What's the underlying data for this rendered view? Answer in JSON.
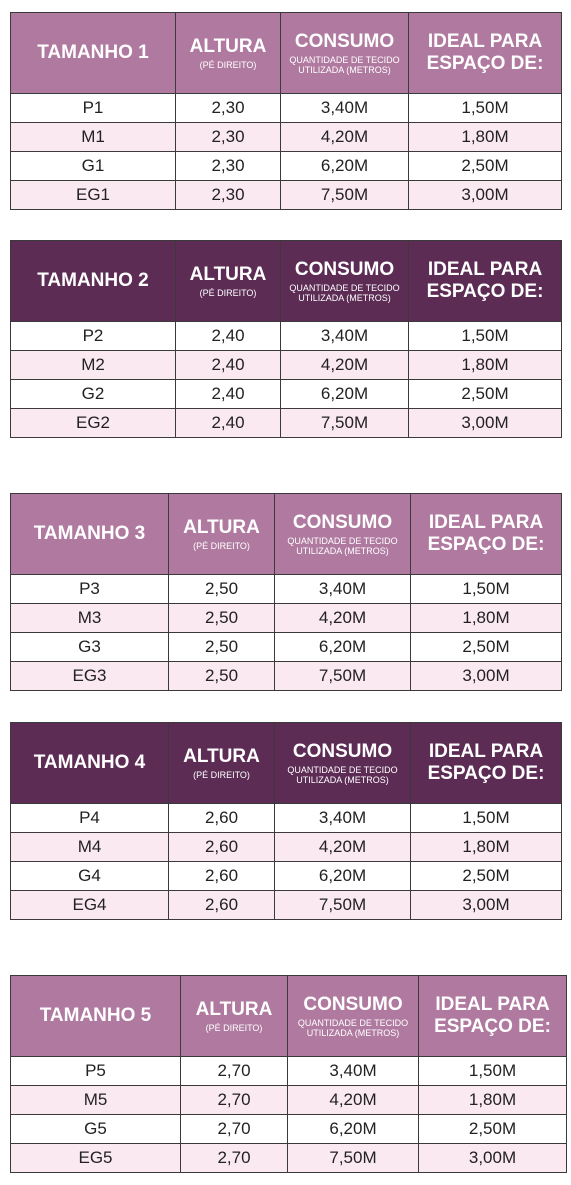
{
  "tables": [
    {
      "header_color": "#b07aa0",
      "header": [
        "TAMANHO 1",
        "ALTURA",
        "(PÉ DIREITO)",
        "CONSUMO",
        "QUANTIDADE DE TECIDO UTILIZADA (METROS)",
        "IDEAL PARA ESPAÇO DE:"
      ],
      "rows": [
        [
          "P1",
          "2,30",
          "3,40M",
          "1,50M"
        ],
        [
          "M1",
          "2,30",
          "4,20M",
          "1,80M"
        ],
        [
          "G1",
          "2,30",
          "6,20M",
          "2,50M"
        ],
        [
          "EG1",
          "2,30",
          "7,50M",
          "3,00M"
        ]
      ]
    },
    {
      "header_color": "#5c2c55",
      "header": [
        "TAMANHO 2",
        "ALTURA",
        "(PÉ DIREITO)",
        "CONSUMO",
        "QUANTIDADE DE TECIDO UTILIZADA (METROS)",
        "IDEAL PARA ESPAÇO DE:"
      ],
      "rows": [
        [
          "P2",
          "2,40",
          "3,40M",
          "1,50M"
        ],
        [
          "M2",
          "2,40",
          "4,20M",
          "1,80M"
        ],
        [
          "G2",
          "2,40",
          "6,20M",
          "2,50M"
        ],
        [
          "EG2",
          "2,40",
          "7,50M",
          "3,00M"
        ]
      ]
    },
    {
      "header_color": "#b07aa0",
      "header": [
        "TAMANHO 3",
        "ALTURA",
        "(PÉ DIREITO)",
        "CONSUMO",
        "QUANTIDADE DE TECIDO UTILIZADA (METROS)",
        "IDEAL PARA ESPAÇO DE:"
      ],
      "rows": [
        [
          "P3",
          "2,50",
          "3,40M",
          "1,50M"
        ],
        [
          "M3",
          "2,50",
          "4,20M",
          "1,80M"
        ],
        [
          "G3",
          "2,50",
          "6,20M",
          "2,50M"
        ],
        [
          "EG3",
          "2,50",
          "7,50M",
          "3,00M"
        ]
      ]
    },
    {
      "header_color": "#5c2c55",
      "header": [
        "TAMANHO 4",
        "ALTURA",
        "(PÉ DIREITO)",
        "CONSUMO",
        "QUANTIDADE DE TECIDO UTILIZADA (METROS)",
        "IDEAL PARA ESPAÇO DE:"
      ],
      "rows": [
        [
          "P4",
          "2,60",
          "3,40M",
          "1,50M"
        ],
        [
          "M4",
          "2,60",
          "4,20M",
          "1,80M"
        ],
        [
          "G4",
          "2,60",
          "6,20M",
          "2,50M"
        ],
        [
          "EG4",
          "2,60",
          "7,50M",
          "3,00M"
        ]
      ]
    },
    {
      "header_color": "#b07aa0",
      "header": [
        "TAMANHO 5",
        "ALTURA",
        "(PÉ DIREITO)",
        "CONSUMO",
        "QUANTIDADE DE TECIDO UTILIZADA (METROS)",
        "IDEAL PARA ESPAÇO DE:"
      ],
      "rows": [
        [
          "P5",
          "2,70",
          "3,40M",
          "1,50M"
        ],
        [
          "M5",
          "2,70",
          "4,20M",
          "1,80M"
        ],
        [
          "G5",
          "2,70",
          "6,20M",
          "2,50M"
        ],
        [
          "EG5",
          "2,70",
          "7,50M",
          "3,00M"
        ]
      ]
    }
  ]
}
